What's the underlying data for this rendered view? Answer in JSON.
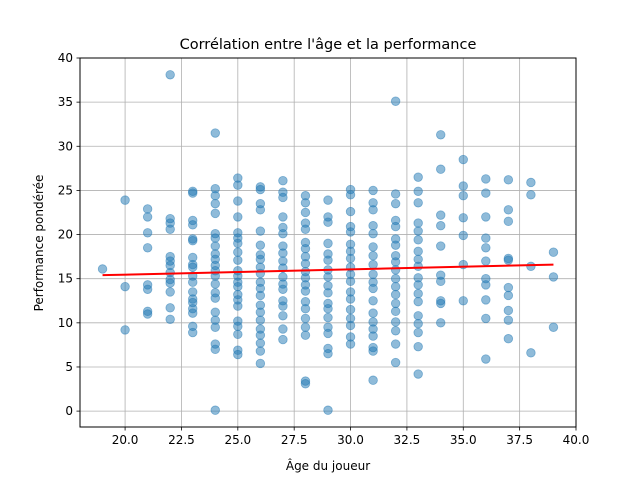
{
  "chart_data": {
    "type": "scatter",
    "title": "Corrélation entre l'âge et la performance",
    "xlabel": "Âge du joueur",
    "ylabel": "Performance pondérée",
    "xlim": [
      18,
      40
    ],
    "ylim": [
      -1.8,
      40
    ],
    "xticks": [
      "20.0",
      "22.5",
      "25.0",
      "27.5",
      "30.0",
      "32.5",
      "35.0",
      "37.5",
      "40.0"
    ],
    "yticks": [
      "0",
      "5",
      "10",
      "15",
      "20",
      "25",
      "30",
      "35",
      "40"
    ],
    "xtick_values": [
      20,
      22.5,
      25,
      27.5,
      30,
      32.5,
      35,
      37.5,
      40
    ],
    "ytick_values": [
      0,
      5,
      10,
      15,
      20,
      25,
      30,
      35,
      40
    ],
    "grid": true,
    "colors": {
      "points": "#1f77b4",
      "trend": "#ff0000",
      "grid": "#b0b0b0"
    },
    "trendline": {
      "x": [
        19,
        39
      ],
      "y": [
        15.4,
        16.6
      ]
    },
    "points": [
      {
        "x": 19,
        "y": 16.1
      },
      {
        "x": 20,
        "y": 23.9
      },
      {
        "x": 20,
        "y": 14.1
      },
      {
        "x": 20,
        "y": 9.2
      },
      {
        "x": 21,
        "y": 22.9
      },
      {
        "x": 21,
        "y": 22.0
      },
      {
        "x": 21,
        "y": 20.2
      },
      {
        "x": 21,
        "y": 18.5
      },
      {
        "x": 21,
        "y": 14.3
      },
      {
        "x": 21,
        "y": 13.8
      },
      {
        "x": 21,
        "y": 11.3
      },
      {
        "x": 21,
        "y": 11.0
      },
      {
        "x": 22,
        "y": 38.1
      },
      {
        "x": 22,
        "y": 21.8
      },
      {
        "x": 22,
        "y": 21.3
      },
      {
        "x": 22,
        "y": 20.6
      },
      {
        "x": 22,
        "y": 17.5
      },
      {
        "x": 22,
        "y": 17.0
      },
      {
        "x": 22,
        "y": 16.5
      },
      {
        "x": 22,
        "y": 15.7
      },
      {
        "x": 22,
        "y": 14.9
      },
      {
        "x": 22,
        "y": 14.5
      },
      {
        "x": 22,
        "y": 13.5
      },
      {
        "x": 22,
        "y": 11.7
      },
      {
        "x": 22,
        "y": 10.4
      },
      {
        "x": 23,
        "y": 24.9
      },
      {
        "x": 23,
        "y": 24.7
      },
      {
        "x": 23,
        "y": 21.6
      },
      {
        "x": 23,
        "y": 21.1
      },
      {
        "x": 23,
        "y": 19.5
      },
      {
        "x": 23,
        "y": 19.3
      },
      {
        "x": 23,
        "y": 17.4
      },
      {
        "x": 23,
        "y": 16.6
      },
      {
        "x": 23,
        "y": 16.3
      },
      {
        "x": 23,
        "y": 15.3
      },
      {
        "x": 23,
        "y": 14.6
      },
      {
        "x": 23,
        "y": 13.5
      },
      {
        "x": 23,
        "y": 12.7
      },
      {
        "x": 23,
        "y": 12.3
      },
      {
        "x": 23,
        "y": 11.6
      },
      {
        "x": 23,
        "y": 11.1
      },
      {
        "x": 23,
        "y": 9.6
      },
      {
        "x": 23,
        "y": 8.9
      },
      {
        "x": 24,
        "y": 31.5
      },
      {
        "x": 24,
        "y": 25.2
      },
      {
        "x": 24,
        "y": 24.4
      },
      {
        "x": 24,
        "y": 23.5
      },
      {
        "x": 24,
        "y": 22.4
      },
      {
        "x": 24,
        "y": 20.1
      },
      {
        "x": 24,
        "y": 19.6
      },
      {
        "x": 24,
        "y": 18.7
      },
      {
        "x": 24,
        "y": 17.8
      },
      {
        "x": 24,
        "y": 17.2
      },
      {
        "x": 24,
        "y": 16.5
      },
      {
        "x": 24,
        "y": 15.9
      },
      {
        "x": 24,
        "y": 15.3
      },
      {
        "x": 24,
        "y": 14.4
      },
      {
        "x": 24,
        "y": 13.4
      },
      {
        "x": 24,
        "y": 12.8
      },
      {
        "x": 24,
        "y": 11.2
      },
      {
        "x": 24,
        "y": 10.3
      },
      {
        "x": 24,
        "y": 9.5
      },
      {
        "x": 24,
        "y": 7.6
      },
      {
        "x": 24,
        "y": 7.0
      },
      {
        "x": 24,
        "y": 0.1
      },
      {
        "x": 25,
        "y": 26.4
      },
      {
        "x": 25,
        "y": 25.6
      },
      {
        "x": 25,
        "y": 23.8
      },
      {
        "x": 25,
        "y": 22.0
      },
      {
        "x": 25,
        "y": 20.2
      },
      {
        "x": 25,
        "y": 19.6
      },
      {
        "x": 25,
        "y": 19.0
      },
      {
        "x": 25,
        "y": 18.0
      },
      {
        "x": 25,
        "y": 17.1
      },
      {
        "x": 25,
        "y": 15.9
      },
      {
        "x": 25,
        "y": 15.3
      },
      {
        "x": 25,
        "y": 14.6
      },
      {
        "x": 25,
        "y": 14.1
      },
      {
        "x": 25,
        "y": 13.2
      },
      {
        "x": 25,
        "y": 12.6
      },
      {
        "x": 25,
        "y": 11.9
      },
      {
        "x": 25,
        "y": 10.2
      },
      {
        "x": 25,
        "y": 9.6
      },
      {
        "x": 25,
        "y": 8.7
      },
      {
        "x": 25,
        "y": 6.9
      },
      {
        "x": 25,
        "y": 6.4
      },
      {
        "x": 26,
        "y": 25.4
      },
      {
        "x": 26,
        "y": 25.1
      },
      {
        "x": 26,
        "y": 23.5
      },
      {
        "x": 26,
        "y": 22.8
      },
      {
        "x": 26,
        "y": 20.4
      },
      {
        "x": 26,
        "y": 18.8
      },
      {
        "x": 26,
        "y": 17.7
      },
      {
        "x": 26,
        "y": 17.2
      },
      {
        "x": 26,
        "y": 16.3
      },
      {
        "x": 26,
        "y": 15.6
      },
      {
        "x": 26,
        "y": 14.6
      },
      {
        "x": 26,
        "y": 13.9
      },
      {
        "x": 26,
        "y": 13.1
      },
      {
        "x": 26,
        "y": 12.0
      },
      {
        "x": 26,
        "y": 11.2
      },
      {
        "x": 26,
        "y": 10.3
      },
      {
        "x": 26,
        "y": 9.3
      },
      {
        "x": 26,
        "y": 8.6
      },
      {
        "x": 26,
        "y": 7.7
      },
      {
        "x": 26,
        "y": 6.8
      },
      {
        "x": 26,
        "y": 5.4
      },
      {
        "x": 27,
        "y": 26.1
      },
      {
        "x": 27,
        "y": 24.8
      },
      {
        "x": 27,
        "y": 24.2
      },
      {
        "x": 27,
        "y": 22.0
      },
      {
        "x": 27,
        "y": 20.8
      },
      {
        "x": 27,
        "y": 20.1
      },
      {
        "x": 27,
        "y": 18.7
      },
      {
        "x": 27,
        "y": 17.9
      },
      {
        "x": 27,
        "y": 17.0
      },
      {
        "x": 27,
        "y": 16.2
      },
      {
        "x": 27,
        "y": 15.2
      },
      {
        "x": 27,
        "y": 14.4
      },
      {
        "x": 27,
        "y": 13.8
      },
      {
        "x": 27,
        "y": 12.5
      },
      {
        "x": 27,
        "y": 11.9
      },
      {
        "x": 27,
        "y": 10.8
      },
      {
        "x": 27,
        "y": 9.3
      },
      {
        "x": 27,
        "y": 8.1
      },
      {
        "x": 28,
        "y": 24.4
      },
      {
        "x": 28,
        "y": 23.6
      },
      {
        "x": 28,
        "y": 22.5
      },
      {
        "x": 28,
        "y": 21.3
      },
      {
        "x": 28,
        "y": 20.6
      },
      {
        "x": 28,
        "y": 19.1
      },
      {
        "x": 28,
        "y": 18.4
      },
      {
        "x": 28,
        "y": 17.5
      },
      {
        "x": 28,
        "y": 16.7
      },
      {
        "x": 28,
        "y": 15.8
      },
      {
        "x": 28,
        "y": 15.1
      },
      {
        "x": 28,
        "y": 14.3
      },
      {
        "x": 28,
        "y": 13.6
      },
      {
        "x": 28,
        "y": 12.4
      },
      {
        "x": 28,
        "y": 11.6
      },
      {
        "x": 28,
        "y": 10.5
      },
      {
        "x": 28,
        "y": 9.5
      },
      {
        "x": 28,
        "y": 8.6
      },
      {
        "x": 28,
        "y": 3.4
      },
      {
        "x": 28,
        "y": 3.1
      },
      {
        "x": 29,
        "y": 23.9
      },
      {
        "x": 29,
        "y": 22.0
      },
      {
        "x": 29,
        "y": 21.4
      },
      {
        "x": 29,
        "y": 19.0
      },
      {
        "x": 29,
        "y": 17.8
      },
      {
        "x": 29,
        "y": 17.1
      },
      {
        "x": 29,
        "y": 16.0
      },
      {
        "x": 29,
        "y": 15.2
      },
      {
        "x": 29,
        "y": 14.2
      },
      {
        "x": 29,
        "y": 13.4
      },
      {
        "x": 29,
        "y": 12.2
      },
      {
        "x": 29,
        "y": 11.6
      },
      {
        "x": 29,
        "y": 10.6
      },
      {
        "x": 29,
        "y": 9.5
      },
      {
        "x": 29,
        "y": 8.8
      },
      {
        "x": 29,
        "y": 7.1
      },
      {
        "x": 29,
        "y": 6.5
      },
      {
        "x": 29,
        "y": 0.1
      },
      {
        "x": 30,
        "y": 25.1
      },
      {
        "x": 30,
        "y": 24.5
      },
      {
        "x": 30,
        "y": 22.6
      },
      {
        "x": 30,
        "y": 20.9
      },
      {
        "x": 30,
        "y": 20.3
      },
      {
        "x": 30,
        "y": 18.9
      },
      {
        "x": 30,
        "y": 18.1
      },
      {
        "x": 30,
        "y": 17.3
      },
      {
        "x": 30,
        "y": 16.3
      },
      {
        "x": 30,
        "y": 15.5
      },
      {
        "x": 30,
        "y": 14.7
      },
      {
        "x": 30,
        "y": 13.5
      },
      {
        "x": 30,
        "y": 12.7
      },
      {
        "x": 30,
        "y": 11.5
      },
      {
        "x": 30,
        "y": 10.5
      },
      {
        "x": 30,
        "y": 9.7
      },
      {
        "x": 30,
        "y": 8.4
      },
      {
        "x": 30,
        "y": 7.6
      },
      {
        "x": 31,
        "y": 25.0
      },
      {
        "x": 31,
        "y": 23.6
      },
      {
        "x": 31,
        "y": 22.8
      },
      {
        "x": 31,
        "y": 21.0
      },
      {
        "x": 31,
        "y": 20.1
      },
      {
        "x": 31,
        "y": 18.6
      },
      {
        "x": 31,
        "y": 17.6
      },
      {
        "x": 31,
        "y": 16.6
      },
      {
        "x": 31,
        "y": 15.5
      },
      {
        "x": 31,
        "y": 14.6
      },
      {
        "x": 31,
        "y": 13.9
      },
      {
        "x": 31,
        "y": 12.5
      },
      {
        "x": 31,
        "y": 11.1
      },
      {
        "x": 31,
        "y": 10.1
      },
      {
        "x": 31,
        "y": 9.3
      },
      {
        "x": 31,
        "y": 8.5
      },
      {
        "x": 31,
        "y": 7.2
      },
      {
        "x": 31,
        "y": 6.8
      },
      {
        "x": 31,
        "y": 3.5
      },
      {
        "x": 32,
        "y": 35.1
      },
      {
        "x": 32,
        "y": 24.6
      },
      {
        "x": 32,
        "y": 23.5
      },
      {
        "x": 32,
        "y": 21.6
      },
      {
        "x": 32,
        "y": 20.9
      },
      {
        "x": 32,
        "y": 19.5
      },
      {
        "x": 32,
        "y": 18.8
      },
      {
        "x": 32,
        "y": 17.6
      },
      {
        "x": 32,
        "y": 16.9
      },
      {
        "x": 32,
        "y": 16.0
      },
      {
        "x": 32,
        "y": 15.0
      },
      {
        "x": 32,
        "y": 14.1
      },
      {
        "x": 32,
        "y": 13.2
      },
      {
        "x": 32,
        "y": 12.2
      },
      {
        "x": 32,
        "y": 11.3
      },
      {
        "x": 32,
        "y": 10.1
      },
      {
        "x": 32,
        "y": 9.1
      },
      {
        "x": 32,
        "y": 7.6
      },
      {
        "x": 32,
        "y": 5.5
      },
      {
        "x": 33,
        "y": 26.5
      },
      {
        "x": 33,
        "y": 24.9
      },
      {
        "x": 33,
        "y": 23.6
      },
      {
        "x": 33,
        "y": 21.3
      },
      {
        "x": 33,
        "y": 20.4
      },
      {
        "x": 33,
        "y": 19.4
      },
      {
        "x": 33,
        "y": 18.1
      },
      {
        "x": 33,
        "y": 17.2
      },
      {
        "x": 33,
        "y": 16.4
      },
      {
        "x": 33,
        "y": 15.1
      },
      {
        "x": 33,
        "y": 14.3
      },
      {
        "x": 33,
        "y": 13.3
      },
      {
        "x": 33,
        "y": 12.4
      },
      {
        "x": 33,
        "y": 10.8
      },
      {
        "x": 33,
        "y": 9.9
      },
      {
        "x": 33,
        "y": 8.9
      },
      {
        "x": 33,
        "y": 7.3
      },
      {
        "x": 33,
        "y": 4.2
      },
      {
        "x": 34,
        "y": 31.3
      },
      {
        "x": 34,
        "y": 27.4
      },
      {
        "x": 34,
        "y": 22.2
      },
      {
        "x": 34,
        "y": 21.0
      },
      {
        "x": 34,
        "y": 18.7
      },
      {
        "x": 34,
        "y": 15.4
      },
      {
        "x": 34,
        "y": 14.7
      },
      {
        "x": 34,
        "y": 12.5
      },
      {
        "x": 34,
        "y": 12.2
      },
      {
        "x": 34,
        "y": 10.0
      },
      {
        "x": 35,
        "y": 28.5
      },
      {
        "x": 35,
        "y": 25.5
      },
      {
        "x": 35,
        "y": 24.4
      },
      {
        "x": 35,
        "y": 21.9
      },
      {
        "x": 35,
        "y": 19.9
      },
      {
        "x": 35,
        "y": 16.6
      },
      {
        "x": 35,
        "y": 12.5
      },
      {
        "x": 36,
        "y": 26.3
      },
      {
        "x": 36,
        "y": 24.7
      },
      {
        "x": 36,
        "y": 22.0
      },
      {
        "x": 36,
        "y": 19.6
      },
      {
        "x": 36,
        "y": 18.5
      },
      {
        "x": 36,
        "y": 17.0
      },
      {
        "x": 36,
        "y": 15.0
      },
      {
        "x": 36,
        "y": 14.3
      },
      {
        "x": 36,
        "y": 12.6
      },
      {
        "x": 36,
        "y": 10.5
      },
      {
        "x": 36,
        "y": 5.9
      },
      {
        "x": 37,
        "y": 26.2
      },
      {
        "x": 37,
        "y": 22.8
      },
      {
        "x": 37,
        "y": 21.5
      },
      {
        "x": 37,
        "y": 17.3
      },
      {
        "x": 37,
        "y": 17.1
      },
      {
        "x": 37,
        "y": 14.0
      },
      {
        "x": 37,
        "y": 13.1
      },
      {
        "x": 37,
        "y": 11.4
      },
      {
        "x": 37,
        "y": 10.3
      },
      {
        "x": 37,
        "y": 8.2
      },
      {
        "x": 38,
        "y": 25.9
      },
      {
        "x": 38,
        "y": 24.5
      },
      {
        "x": 38,
        "y": 16.4
      },
      {
        "x": 38,
        "y": 6.6
      },
      {
        "x": 39,
        "y": 18.0
      },
      {
        "x": 39,
        "y": 15.2
      },
      {
        "x": 39,
        "y": 9.5
      }
    ]
  }
}
